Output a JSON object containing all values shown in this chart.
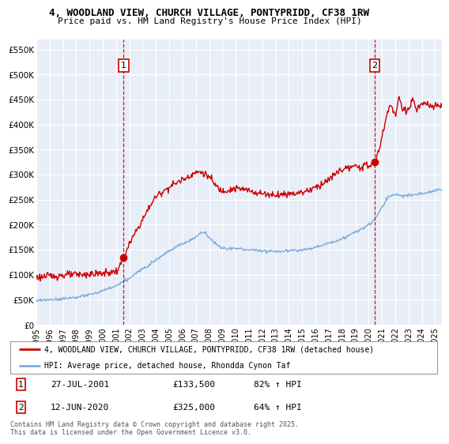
{
  "title_line1": "4, WOODLAND VIEW, CHURCH VILLAGE, PONTYPRIDD, CF38 1RW",
  "title_line2": "Price paid vs. HM Land Registry's House Price Index (HPI)",
  "ylabel_ticks": [
    "£0",
    "£50K",
    "£100K",
    "£150K",
    "£200K",
    "£250K",
    "£300K",
    "£350K",
    "£400K",
    "£450K",
    "£500K",
    "£550K"
  ],
  "ytick_vals": [
    0,
    50000,
    100000,
    150000,
    200000,
    250000,
    300000,
    350000,
    400000,
    450000,
    500000,
    550000
  ],
  "xmin": 1995,
  "xmax": 2025.5,
  "ymin": 0,
  "ymax": 570000,
  "sale1_x": 2001.57,
  "sale1_y": 133500,
  "sale2_x": 2020.45,
  "sale2_y": 325000,
  "sale1_label": "1",
  "sale2_label": "2",
  "sale_color": "#cc0000",
  "hpi_color": "#7aaddd",
  "background_color": "#e8eef8",
  "grid_color": "#ffffff",
  "annotation_line_color": "#cc0000",
  "legend_label1": "4, WOODLAND VIEW, CHURCH VILLAGE, PONTYPRIDD, CF38 1RW (detached house)",
  "legend_label2": "HPI: Average price, detached house, Rhondda Cynon Taf",
  "table_row1": [
    "1",
    "27-JUL-2001",
    "£133,500",
    "82% ↑ HPI"
  ],
  "table_row2": [
    "2",
    "12-JUN-2020",
    "£325,000",
    "64% ↑ HPI"
  ],
  "footer": "Contains HM Land Registry data © Crown copyright and database right 2025.\nThis data is licensed under the Open Government Licence v3.0.",
  "xticks": [
    1995,
    1996,
    1997,
    1998,
    1999,
    2000,
    2001,
    2002,
    2003,
    2004,
    2005,
    2006,
    2007,
    2008,
    2009,
    2010,
    2011,
    2012,
    2013,
    2014,
    2015,
    2016,
    2017,
    2018,
    2019,
    2020,
    2021,
    2022,
    2023,
    2024,
    2025
  ],
  "prop_keypoints_x": [
    1995,
    1996,
    1997,
    1998,
    1999,
    2000,
    2001,
    2001.57,
    2002,
    2003,
    2004,
    2005,
    2006,
    2007.3,
    2008,
    2008.5,
    2009,
    2009.5,
    2010,
    2011,
    2012,
    2013,
    2014,
    2015,
    2016,
    2017,
    2018,
    2019,
    2020,
    2020.45,
    2021,
    2021.3,
    2021.6,
    2022,
    2022.3,
    2022.6,
    2023,
    2023.3,
    2023.6,
    2024,
    2024.3,
    2025,
    2025.5
  ],
  "prop_keypoints_y": [
    95000,
    97000,
    99000,
    100000,
    101000,
    103000,
    107000,
    133500,
    160000,
    210000,
    255000,
    275000,
    290000,
    305000,
    295000,
    278000,
    268000,
    270000,
    272000,
    268000,
    262000,
    260000,
    262000,
    265000,
    275000,
    290000,
    310000,
    315000,
    318000,
    325000,
    375000,
    410000,
    440000,
    420000,
    450000,
    430000,
    430000,
    450000,
    430000,
    440000,
    440000,
    435000,
    440000
  ],
  "hpi_keypoints_x": [
    1995,
    1996,
    1997,
    1998,
    1999,
    2000,
    2001,
    2002,
    2003,
    2004,
    2005,
    2006,
    2007,
    2007.5,
    2008,
    2008.5,
    2009,
    2010,
    2011,
    2012,
    2013,
    2014,
    2015,
    2016,
    2017,
    2018,
    2019,
    2020,
    2020.45,
    2021,
    2021.5,
    2022,
    2022.5,
    2023,
    2023.5,
    2024,
    2025,
    2025.5
  ],
  "hpi_keypoints_y": [
    48000,
    50000,
    52000,
    55000,
    60000,
    68000,
    78000,
    93000,
    112000,
    130000,
    148000,
    162000,
    175000,
    185000,
    175000,
    162000,
    153000,
    152000,
    150000,
    148000,
    147000,
    148000,
    150000,
    155000,
    163000,
    172000,
    185000,
    200000,
    210000,
    235000,
    255000,
    260000,
    258000,
    258000,
    260000,
    262000,
    268000,
    270000
  ]
}
